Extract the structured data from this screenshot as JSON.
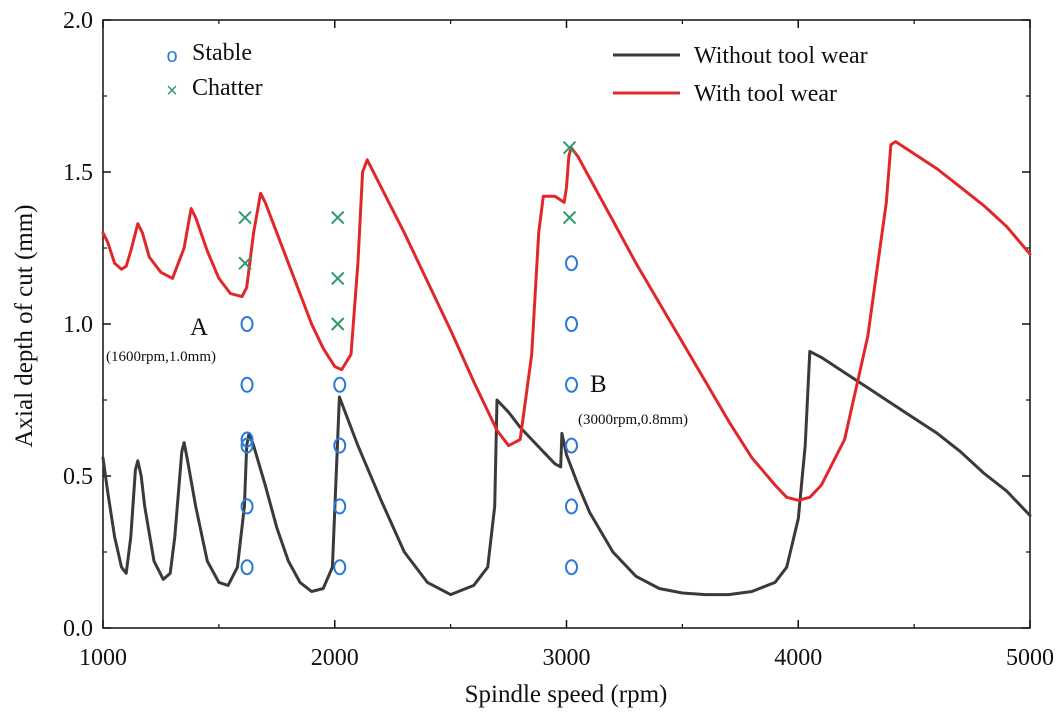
{
  "chart_data": {
    "type": "line",
    "xlabel": "Spindle speed (rpm)",
    "ylabel": "Axial depth of cut (mm)",
    "xlim": [
      1000,
      5000
    ],
    "ylim": [
      0.0,
      2.0
    ],
    "xticks": [
      1000,
      2000,
      3000,
      4000,
      5000
    ],
    "yticks": [
      0.0,
      0.5,
      1.0,
      1.5,
      2.0
    ],
    "ytick_labels": [
      "0.0",
      "0.5",
      "1.0",
      "1.5",
      "2.0"
    ],
    "grid": false,
    "legend_position": "top-right",
    "series": [
      {
        "name": "Without tool wear",
        "color": "#3a3a3a",
        "x": [
          1000,
          1020,
          1050,
          1080,
          1100,
          1120,
          1140,
          1150,
          1165,
          1180,
          1220,
          1260,
          1290,
          1310,
          1340,
          1350,
          1365,
          1400,
          1450,
          1500,
          1540,
          1580,
          1610,
          1620,
          1630,
          1650,
          1700,
          1750,
          1800,
          1850,
          1900,
          1950,
          1990,
          2020,
          2030,
          2050,
          2100,
          2200,
          2300,
          2400,
          2500,
          2600,
          2660,
          2690,
          2700,
          2750,
          2800,
          2850,
          2900,
          2950,
          2975,
          2980,
          3000,
          3050,
          3100,
          3200,
          3300,
          3400,
          3500,
          3600,
          3700,
          3800,
          3900,
          3950,
          4000,
          4030,
          4050,
          4100,
          4200,
          4300,
          4400,
          4500,
          4600,
          4700,
          4800,
          4900,
          5000
        ],
        "y": [
          0.56,
          0.45,
          0.3,
          0.2,
          0.18,
          0.3,
          0.52,
          0.55,
          0.5,
          0.4,
          0.22,
          0.16,
          0.18,
          0.3,
          0.58,
          0.61,
          0.55,
          0.4,
          0.22,
          0.15,
          0.14,
          0.2,
          0.4,
          0.6,
          0.64,
          0.6,
          0.47,
          0.33,
          0.22,
          0.15,
          0.12,
          0.13,
          0.2,
          0.76,
          0.74,
          0.7,
          0.6,
          0.42,
          0.25,
          0.15,
          0.11,
          0.14,
          0.2,
          0.4,
          0.75,
          0.71,
          0.66,
          0.62,
          0.58,
          0.54,
          0.53,
          0.64,
          0.57,
          0.47,
          0.38,
          0.25,
          0.17,
          0.13,
          0.115,
          0.11,
          0.11,
          0.12,
          0.15,
          0.2,
          0.36,
          0.6,
          0.91,
          0.89,
          0.84,
          0.79,
          0.74,
          0.69,
          0.64,
          0.58,
          0.51,
          0.45,
          0.37
        ]
      },
      {
        "name": "With tool wear",
        "color": "#e0282a",
        "x": [
          1000,
          1020,
          1050,
          1080,
          1100,
          1120,
          1150,
          1170,
          1200,
          1250,
          1300,
          1350,
          1380,
          1400,
          1450,
          1500,
          1550,
          1600,
          1620,
          1650,
          1680,
          1700,
          1750,
          1800,
          1850,
          1900,
          1950,
          2000,
          2030,
          2070,
          2100,
          2120,
          2140,
          2200,
          2300,
          2400,
          2500,
          2600,
          2700,
          2750,
          2800,
          2850,
          2880,
          2900,
          2950,
          2990,
          3000,
          3010,
          3020,
          3050,
          3100,
          3200,
          3300,
          3400,
          3500,
          3600,
          3700,
          3800,
          3900,
          3950,
          4000,
          4050,
          4100,
          4200,
          4300,
          4380,
          4400,
          4420,
          4500,
          4600,
          4700,
          4800,
          4900,
          5000
        ],
        "y": [
          1.3,
          1.27,
          1.2,
          1.18,
          1.19,
          1.24,
          1.33,
          1.3,
          1.22,
          1.17,
          1.15,
          1.25,
          1.38,
          1.35,
          1.24,
          1.15,
          1.1,
          1.09,
          1.12,
          1.3,
          1.43,
          1.4,
          1.3,
          1.2,
          1.1,
          1.0,
          0.92,
          0.86,
          0.85,
          0.9,
          1.2,
          1.5,
          1.54,
          1.45,
          1.3,
          1.14,
          0.98,
          0.81,
          0.65,
          0.6,
          0.62,
          0.9,
          1.3,
          1.42,
          1.42,
          1.4,
          1.45,
          1.55,
          1.58,
          1.55,
          1.48,
          1.34,
          1.2,
          1.07,
          0.94,
          0.81,
          0.68,
          0.56,
          0.47,
          0.43,
          0.42,
          0.43,
          0.47,
          0.62,
          0.96,
          1.4,
          1.59,
          1.6,
          1.56,
          1.51,
          1.45,
          1.39,
          1.32,
          1.23
        ]
      },
      {
        "name": "Stable",
        "type": "scatter",
        "marker": "o",
        "color": "#2a7ad6",
        "x": [
          1600,
          1600,
          1600,
          1600,
          1600,
          1600,
          2000,
          2000,
          2000,
          2000,
          3000,
          3000,
          3000,
          3000,
          3000,
          3000
        ],
        "y": [
          0.2,
          0.4,
          0.6,
          0.8,
          1.0,
          0.62,
          0.2,
          0.4,
          0.6,
          0.8,
          0.2,
          0.4,
          0.6,
          0.8,
          1.0,
          1.2
        ]
      },
      {
        "name": "Chatter",
        "type": "scatter",
        "marker": "x",
        "color": "#2f9a6a",
        "x": [
          1600,
          1600,
          2000,
          2000,
          2000,
          3000,
          3000
        ],
        "y": [
          1.2,
          1.35,
          1.0,
          1.15,
          1.35,
          1.35,
          1.58
        ]
      }
    ],
    "annotations": [
      {
        "letter": "A",
        "text": "(1600rpm,1.0mm)",
        "x": 1600,
        "y": 1.0
      },
      {
        "letter": "B",
        "text": "(3000rpm,0.8mm)",
        "x": 3000,
        "y": 0.8
      }
    ]
  }
}
